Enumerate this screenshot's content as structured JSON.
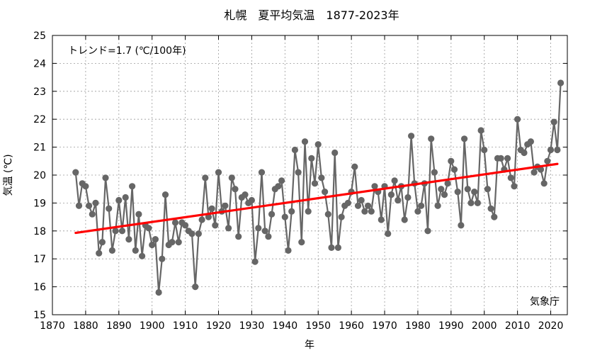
{
  "chart_data": {
    "type": "line",
    "title": "札幌　夏平均気温　1877-2023年",
    "xlabel": "年",
    "ylabel": "気温 (℃)",
    "xlim": [
      1870,
      2025
    ],
    "ylim": [
      15,
      25
    ],
    "xticks": [
      "1870",
      "1880",
      "1890",
      "1900",
      "1910",
      "1920",
      "1930",
      "1940",
      "1950",
      "1960",
      "1970",
      "1980",
      "1990",
      "2000",
      "2010",
      "2020"
    ],
    "yticks": [
      "15",
      "16",
      "17",
      "18",
      "19",
      "20",
      "21",
      "22",
      "23",
      "24",
      "25"
    ],
    "grid": true,
    "trend_label": "トレンド=1.7 (℃/100年)",
    "source": "気象庁",
    "trend": {
      "x": [
        1877,
        2022
      ],
      "y": [
        17.93,
        20.4
      ],
      "color": "#ff0000"
    },
    "series": [
      {
        "color": "#666666",
        "x": [
          1877,
          1878,
          1879,
          1880,
          1881,
          1882,
          1883,
          1884,
          1885,
          1886,
          1887,
          1888,
          1889,
          1890,
          1891,
          1892,
          1893,
          1894,
          1895,
          1896,
          1897,
          1898,
          1899,
          1900,
          1901,
          1902,
          1903,
          1904,
          1905,
          1906,
          1907,
          1908,
          1909,
          1910,
          1911,
          1912,
          1913,
          1914,
          1915,
          1916,
          1917,
          1918,
          1919,
          1920,
          1921,
          1922,
          1923,
          1924,
          1925,
          1926,
          1927,
          1928,
          1929,
          1930,
          1931,
          1932,
          1933,
          1934,
          1935,
          1936,
          1937,
          1938,
          1939,
          1940,
          1941,
          1942,
          1943,
          1944,
          1945,
          1946,
          1947,
          1948,
          1949,
          1950,
          1951,
          1952,
          1953,
          1954,
          1955,
          1956,
          1957,
          1958,
          1959,
          1960,
          1961,
          1962,
          1963,
          1964,
          1965,
          1966,
          1967,
          1968,
          1969,
          1970,
          1971,
          1972,
          1973,
          1974,
          1975,
          1976,
          1977,
          1978,
          1979,
          1980,
          1981,
          1982,
          1983,
          1984,
          1985,
          1986,
          1987,
          1988,
          1989,
          1990,
          1991,
          1992,
          1993,
          1994,
          1995,
          1996,
          1997,
          1998,
          1999,
          2000,
          2001,
          2002,
          2003,
          2004,
          2005,
          2006,
          2007,
          2008,
          2009,
          2010,
          2011,
          2012,
          2013,
          2014,
          2015,
          2016,
          2017,
          2018,
          2019,
          2020,
          2021,
          2022,
          2023
        ],
        "y": [
          20.1,
          18.9,
          19.7,
          19.6,
          18.9,
          18.6,
          19.0,
          17.2,
          17.6,
          19.9,
          18.8,
          17.3,
          18.0,
          19.1,
          18.0,
          19.2,
          17.7,
          19.6,
          17.3,
          18.6,
          17.1,
          18.2,
          18.1,
          17.5,
          17.7,
          15.8,
          17.0,
          19.3,
          17.5,
          17.6,
          18.3,
          17.6,
          18.3,
          18.2,
          18.0,
          17.9,
          16.0,
          17.9,
          18.4,
          19.9,
          18.5,
          18.8,
          18.2,
          20.1,
          18.7,
          18.9,
          18.1,
          19.9,
          19.5,
          17.8,
          19.2,
          19.3,
          19.0,
          19.1,
          16.9,
          18.1,
          20.1,
          18.0,
          17.8,
          18.6,
          19.5,
          19.6,
          19.8,
          18.5,
          17.3,
          18.7,
          20.9,
          20.1,
          17.6,
          21.2,
          18.7,
          20.6,
          19.7,
          21.1,
          19.9,
          19.4,
          18.6,
          17.4,
          20.8,
          17.4,
          18.5,
          18.9,
          19.0,
          19.4,
          20.3,
          18.9,
          19.1,
          18.7,
          18.9,
          18.7,
          19.6,
          19.4,
          18.4,
          19.6,
          17.9,
          19.3,
          19.8,
          19.1,
          19.6,
          18.4,
          19.2,
          21.4,
          19.7,
          18.7,
          18.9,
          19.7,
          18.0,
          21.3,
          20.1,
          18.9,
          19.5,
          19.3,
          19.7,
          20.5,
          20.2,
          19.4,
          18.2,
          21.3,
          19.5,
          19.0,
          19.4,
          19.0,
          21.6,
          20.9,
          19.5,
          18.8,
          18.5,
          20.6,
          20.6,
          20.2,
          20.6,
          19.9,
          19.6,
          22.0,
          20.9,
          20.8,
          21.1,
          21.2,
          20.1,
          20.3,
          20.2,
          19.7,
          20.5,
          20.9,
          21.9,
          20.9,
          23.3
        ]
      }
    ]
  }
}
